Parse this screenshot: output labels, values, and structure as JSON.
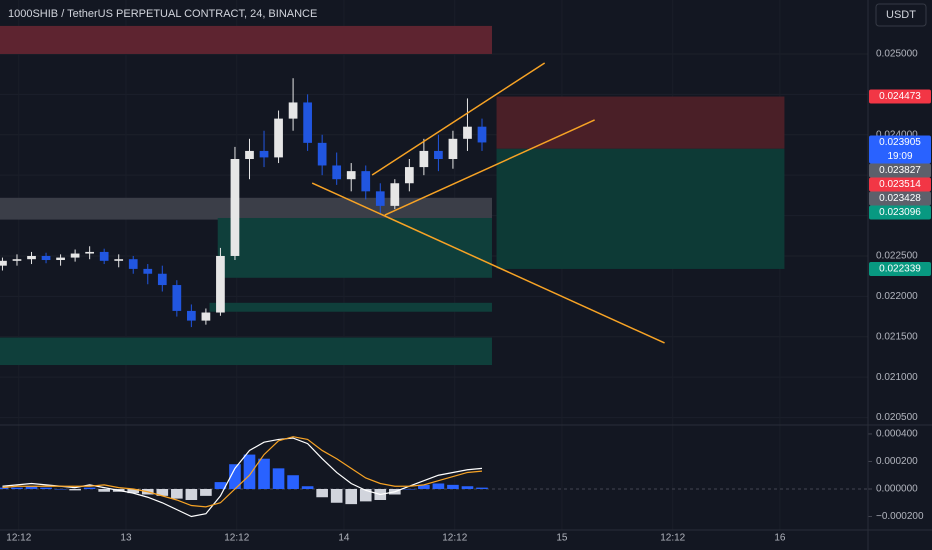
{
  "chart_data": [
    {
      "type": "candlestick",
      "title": "1000SHIB / TetherUS PERPETUAL CONTRACT, 24, BINANCE",
      "currency": "USDT",
      "up_color": "#e6e6e6",
      "down_color": "#2156e0",
      "x": [
        -13.6,
        -12,
        -10.4,
        -8.8,
        -7.2,
        -5.6,
        -4,
        -2.4,
        -0.8,
        0.8,
        2.4,
        4,
        5.6,
        7.2,
        8.8,
        10.4,
        12,
        13.6,
        15.2,
        16.8,
        18.4,
        20,
        21.6,
        23.2,
        24.8,
        26.4,
        28,
        29.6,
        31.2,
        32.8,
        34.4,
        36,
        37.6,
        39.2
      ],
      "open": [
        0.02238,
        0.02244,
        0.02246,
        0.0225,
        0.02245,
        0.02248,
        0.02253,
        0.02255,
        0.02244,
        0.02246,
        0.02234,
        0.02228,
        0.02214,
        0.02182,
        0.0217,
        0.0218,
        0.0225,
        0.0237,
        0.0238,
        0.02372,
        0.0242,
        0.0244,
        0.0239,
        0.02362,
        0.02345,
        0.02355,
        0.0233,
        0.02312,
        0.0234,
        0.0236,
        0.0238,
        0.0237,
        0.02395,
        0.0241
      ],
      "high": [
        0.02248,
        0.02252,
        0.02255,
        0.02254,
        0.02252,
        0.02258,
        0.02262,
        0.02259,
        0.02252,
        0.0225,
        0.0224,
        0.02238,
        0.0222,
        0.0219,
        0.02185,
        0.0226,
        0.02385,
        0.02395,
        0.02405,
        0.0243,
        0.0247,
        0.0245,
        0.024,
        0.02378,
        0.02365,
        0.02362,
        0.0234,
        0.02345,
        0.0237,
        0.02395,
        0.024,
        0.02405,
        0.02445,
        0.0242
      ],
      "low": [
        0.02232,
        0.02238,
        0.0224,
        0.02241,
        0.02238,
        0.02243,
        0.02246,
        0.0224,
        0.02236,
        0.02228,
        0.02215,
        0.02206,
        0.02175,
        0.02162,
        0.02165,
        0.02176,
        0.02245,
        0.02345,
        0.0236,
        0.02365,
        0.02405,
        0.0238,
        0.0235,
        0.02338,
        0.0233,
        0.0232,
        0.02302,
        0.02308,
        0.0233,
        0.0235,
        0.02355,
        0.02358,
        0.0238,
        0.0238
      ],
      "close": [
        0.02244,
        0.02246,
        0.0225,
        0.02245,
        0.02248,
        0.02253,
        0.02255,
        0.02244,
        0.02246,
        0.02234,
        0.02228,
        0.02214,
        0.02182,
        0.0217,
        0.0218,
        0.0225,
        0.0237,
        0.0238,
        0.02372,
        0.0242,
        0.0244,
        0.0239,
        0.02362,
        0.02345,
        0.02355,
        0.0233,
        0.02312,
        0.0234,
        0.0236,
        0.0238,
        0.0237,
        0.02395,
        0.0241,
        0.023905
      ],
      "xlim": [
        -13.87,
        81.7
      ],
      "ylim": [
        0.020408,
        0.025668
      ],
      "yticks": [
        {
          "value": 0.0205,
          "label": "0.020500"
        },
        {
          "value": 0.021,
          "label": "0.021000"
        },
        {
          "value": 0.0215,
          "label": "0.021500"
        },
        {
          "value": 0.022,
          "label": "0.022000"
        },
        {
          "value": 0.0225,
          "label": "0.022500"
        },
        {
          "value": 0.023,
          "label": "0.023000"
        },
        {
          "value": 0.0235,
          "label": "0.023500"
        },
        {
          "value": 0.024,
          "label": "0.024000"
        },
        {
          "value": 0.0245,
          "label": "0.024500"
        },
        {
          "value": 0.025,
          "label": "0.025000"
        }
      ],
      "xticks": [
        {
          "value": -11.8,
          "label": "12:12"
        },
        {
          "value": 0,
          "label": "13"
        },
        {
          "value": 12.2,
          "label": "12:12"
        },
        {
          "value": 24,
          "label": "14"
        },
        {
          "value": 36.2,
          "label": "12:12"
        },
        {
          "value": 48,
          "label": "15"
        },
        {
          "value": 60.2,
          "label": "12:12"
        },
        {
          "value": 72,
          "label": "16"
        }
      ],
      "grid": true,
      "zones": [
        {
          "x": [
            -13.9,
            40.3
          ],
          "y": [
            0.025347,
            0.025
          ],
          "color": "#5e2430"
        },
        {
          "x": [
            -13.9,
            40.3
          ],
          "y": [
            0.02322,
            0.02295
          ],
          "color": "#3b3e48"
        },
        {
          "x": [
            10.1,
            40.3
          ],
          "y": [
            0.02297,
            0.02223
          ],
          "color": "#0f3f3b"
        },
        {
          "x": [
            9.2,
            40.3
          ],
          "y": [
            0.02192,
            0.02181
          ],
          "color": "#0f3f3b"
        },
        {
          "x": [
            -13.9,
            40.3
          ],
          "y": [
            0.02149,
            0.02115
          ],
          "color": "#0f3f3b"
        },
        {
          "x": [
            40.8,
            72.5
          ],
          "y": [
            0.024473,
            0.023827
          ],
          "color": "#4a1f27"
        },
        {
          "x": [
            40.8,
            72.5
          ],
          "y": [
            0.023827,
            0.022339
          ],
          "color": "#0d3a36"
        }
      ],
      "lines": [
        {
          "x": [
            27.1,
            46.1
          ],
          "y": [
            0.023502,
            0.024889
          ],
          "color": "#f7a325"
        },
        {
          "x": [
            28.5,
            51.6
          ],
          "y": [
            0.023007,
            0.024183
          ],
          "color": "#f7a325"
        },
        {
          "x": [
            20.5,
            59.3
          ],
          "y": [
            0.023403,
            0.021423
          ],
          "color": "#f7a325"
        }
      ],
      "price_tags": [
        {
          "value": 0.024473,
          "color": "#f23645"
        },
        {
          "value": 0.023905,
          "color": "#2962ff",
          "countdown": "19:09"
        },
        {
          "value": 0.023827,
          "color": "#5d606b"
        },
        {
          "value": 0.023514,
          "color": "#f23645"
        },
        {
          "value": 0.023428,
          "color": "#5d606b"
        },
        {
          "value": 0.023096,
          "color": "#089981"
        },
        {
          "value": 0.022339,
          "color": "#089981"
        }
      ]
    },
    {
      "type": "macd",
      "x": [
        -13.6,
        -12,
        -10.4,
        -8.8,
        -7.2,
        -5.6,
        -4,
        -2.4,
        -0.8,
        0.8,
        2.4,
        4,
        5.6,
        7.2,
        8.8,
        10.4,
        12,
        13.6,
        15.2,
        16.8,
        18.4,
        20,
        21.6,
        23.2,
        24.8,
        26.4,
        28,
        29.6,
        31.2,
        32.8,
        34.4,
        36,
        37.6,
        39.2
      ],
      "y2lim": [
        -0.000298,
        0.000465
      ],
      "y2ticks": [
        {
          "value": -0.0002,
          "label": "−0.000200"
        },
        {
          "value": 0,
          "label": "0.000000"
        },
        {
          "value": 0.0002,
          "label": "0.000200"
        },
        {
          "value": 0.0004,
          "label": "0.000400"
        }
      ],
      "series": [
        {
          "kind": "histogram",
          "color": "#2962ff",
          "neg_color": "#d1d4dc",
          "values": [
            1e-05,
            1e-05,
            2e-05,
            1e-05,
            0,
            -1e-05,
            1e-05,
            -2e-05,
            -2e-05,
            -3e-05,
            -4e-05,
            -5e-05,
            -7e-05,
            -8e-05,
            -5e-05,
            5e-05,
            0.00018,
            0.00025,
            0.00022,
            0.00015,
            0.0001,
            2e-05,
            -6e-05,
            -0.0001,
            -0.00011,
            -9e-05,
            -8e-05,
            -4e-05,
            0,
            3e-05,
            4e-05,
            3e-05,
            2e-05,
            1e-05
          ]
        },
        {
          "kind": "line",
          "color": "#ffffff",
          "values": [
            2e-05,
            3e-05,
            4e-05,
            3e-05,
            2e-05,
            1e-05,
            3e-05,
            1e-05,
            -1e-05,
            -3e-05,
            -6e-05,
            -0.0001,
            -0.00015,
            -0.0002,
            -0.00018,
            -5e-05,
            0.00015,
            0.00028,
            0.00034,
            0.00036,
            0.00037,
            0.00033,
            0.00022,
            0.00012,
            4e-05,
            -1e-05,
            -4e-05,
            -2e-05,
            2e-05,
            6e-05,
            0.0001,
            0.00012,
            0.00014,
            0.00015
          ]
        },
        {
          "kind": "line",
          "color": "#f7a325",
          "values": [
            1e-05,
            2e-05,
            2e-05,
            2e-05,
            2e-05,
            2e-05,
            2e-05,
            3e-05,
            1e-05,
            0,
            -2e-05,
            -5e-05,
            -8e-05,
            -0.00012,
            -0.00013,
            -0.0001,
            0,
            0.0001,
            0.00025,
            0.00035,
            0.00038,
            0.00036,
            0.00028,
            0.00022,
            0.00015,
            8e-05,
            4e-05,
            2e-05,
            2e-05,
            3e-05,
            6e-05,
            9e-05,
            0.00012,
            0.00013
          ]
        }
      ]
    }
  ]
}
